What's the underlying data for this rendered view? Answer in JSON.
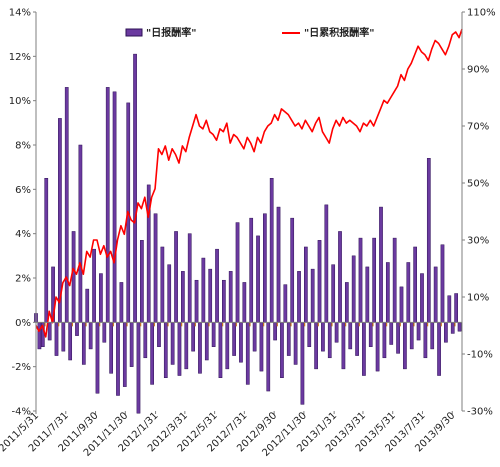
{
  "chart_data": {
    "type": "bar+line",
    "legend": {
      "placement": "top",
      "items": [
        "\"日报酬率\"",
        "\"日累积报酬率\""
      ]
    },
    "colors": {
      "bar_fill": "#6b3aa0",
      "bar_stroke": "#2e1155",
      "bar_highlight": "#c8731e",
      "line": "#ff0000",
      "axis": "#7f7f7f"
    },
    "grid": false,
    "left_axis": {
      "min": -0.04,
      "max": 0.14,
      "ticks": [
        -0.04,
        -0.02,
        0,
        0.02,
        0.04,
        0.06,
        0.08,
        0.1,
        0.12,
        0.14
      ],
      "tick_labels": [
        "-4%",
        "-2%",
        "0%",
        "2%",
        "4%",
        "6%",
        "8%",
        "10%",
        "12%",
        "14%"
      ]
    },
    "right_axis": {
      "min": -0.3,
      "max": 1.1,
      "ticks": [
        -0.3,
        -0.1,
        0.1,
        0.3,
        0.5,
        0.7,
        0.9,
        1.1
      ],
      "tick_labels": [
        "-30%",
        "-10%",
        "10%",
        "30%",
        "50%",
        "70%",
        "90%",
        "110%"
      ]
    },
    "x_axis": {
      "start": "2011-05-31",
      "end": "2013-10-20",
      "tick_dates": [
        "2011-05-31",
        "2011-07-31",
        "2011-09-30",
        "2011-11-30",
        "2012-01-31",
        "2012-03-31",
        "2012-05-31",
        "2012-07-31",
        "2012-09-30",
        "2012-11-30",
        "2013-01-31",
        "2013-03-31",
        "2013-05-31",
        "2013-07-31",
        "2013-09-30"
      ],
      "tick_labels": [
        "2011/5/31",
        "2011/7/31",
        "2011/9/30",
        "2011/11/30",
        "2012/1/31",
        "2012/3/31",
        "2012/5/31",
        "2012/7/31",
        "2012/9/30",
        "2012/11/30",
        "2013/1/31",
        "2013/3/31",
        "2013/5/31",
        "2013/7/31",
        "2013/9/30"
      ]
    },
    "series": [
      {
        "name": "\"日报酬率\"",
        "kind": "bar",
        "axis": "left",
        "x": [
          "2011-05-31",
          "2011-06-07",
          "2011-06-14",
          "2011-06-21",
          "2011-06-28",
          "2011-07-05",
          "2011-07-12",
          "2011-07-19",
          "2011-07-26",
          "2011-08-02",
          "2011-08-09",
          "2011-08-16",
          "2011-08-23",
          "2011-08-30",
          "2011-09-06",
          "2011-09-13",
          "2011-09-20",
          "2011-09-27",
          "2011-10-04",
          "2011-10-11",
          "2011-10-18",
          "2011-10-25",
          "2011-11-01",
          "2011-11-08",
          "2011-11-15",
          "2011-11-22",
          "2011-11-29",
          "2011-12-06",
          "2011-12-13",
          "2011-12-20",
          "2011-12-27",
          "2012-01-03",
          "2012-01-10",
          "2012-01-17",
          "2012-01-24",
          "2012-01-31",
          "2012-02-07",
          "2012-02-14",
          "2012-02-21",
          "2012-02-28",
          "2012-03-06",
          "2012-03-13",
          "2012-03-20",
          "2012-03-27",
          "2012-04-03",
          "2012-04-10",
          "2012-04-17",
          "2012-04-24",
          "2012-05-01",
          "2012-05-08",
          "2012-05-15",
          "2012-05-22",
          "2012-05-29",
          "2012-06-05",
          "2012-06-12",
          "2012-06-19",
          "2012-06-26",
          "2012-07-03",
          "2012-07-10",
          "2012-07-17",
          "2012-07-24",
          "2012-07-31",
          "2012-08-07",
          "2012-08-14",
          "2012-08-21",
          "2012-08-28",
          "2012-09-04",
          "2012-09-11",
          "2012-09-18",
          "2012-09-25",
          "2012-10-02",
          "2012-10-09",
          "2012-10-16",
          "2012-10-23",
          "2012-10-30",
          "2012-11-06",
          "2012-11-13",
          "2012-11-20",
          "2012-11-27",
          "2012-12-04",
          "2012-12-11",
          "2012-12-18",
          "2012-12-25",
          "2013-01-01",
          "2013-01-08",
          "2013-01-15",
          "2013-01-22",
          "2013-01-29",
          "2013-02-05",
          "2013-02-12",
          "2013-02-19",
          "2013-02-26",
          "2013-03-05",
          "2013-03-12",
          "2013-03-19",
          "2013-03-26",
          "2013-04-02",
          "2013-04-09",
          "2013-04-16",
          "2013-04-23",
          "2013-04-30",
          "2013-05-07",
          "2013-05-14",
          "2013-05-21",
          "2013-05-28",
          "2013-06-04",
          "2013-06-11",
          "2013-06-18",
          "2013-06-25",
          "2013-07-02",
          "2013-07-09",
          "2013-07-16",
          "2013-07-23",
          "2013-07-30",
          "2013-08-06",
          "2013-08-13",
          "2013-08-20",
          "2013-08-27",
          "2013-09-03",
          "2013-09-10",
          "2013-09-17",
          "2013-09-24",
          "2013-10-01",
          "2013-10-08",
          "2013-10-15"
        ],
        "values": [
          0.004,
          -0.012,
          -0.011,
          0.065,
          -0.008,
          0.025,
          -0.015,
          0.092,
          -0.013,
          0.106,
          -0.017,
          0.041,
          -0.006,
          0.08,
          -0.019,
          0.015,
          -0.012,
          0.033,
          -0.032,
          0.022,
          -0.009,
          0.106,
          -0.023,
          0.104,
          -0.033,
          0.018,
          -0.029,
          0.099,
          -0.02,
          0.121,
          -0.041,
          0.037,
          -0.016,
          0.062,
          -0.028,
          0.049,
          -0.011,
          0.034,
          -0.025,
          0.026,
          -0.019,
          0.041,
          -0.024,
          0.023,
          -0.021,
          0.04,
          -0.013,
          0.019,
          -0.023,
          0.029,
          -0.017,
          0.024,
          -0.011,
          0.033,
          -0.025,
          0.019,
          -0.021,
          0.023,
          -0.015,
          0.045,
          -0.018,
          0.018,
          -0.028,
          0.047,
          -0.013,
          0.039,
          -0.022,
          0.049,
          -0.031,
          0.065,
          -0.008,
          0.052,
          -0.025,
          0.017,
          -0.015,
          0.047,
          -0.019,
          0.023,
          -0.037,
          0.034,
          -0.011,
          0.024,
          -0.021,
          0.037,
          -0.013,
          0.053,
          -0.016,
          0.026,
          -0.009,
          0.041,
          -0.021,
          0.018,
          -0.012,
          0.03,
          -0.015,
          0.038,
          -0.024,
          0.025,
          -0.011,
          0.038,
          -0.022,
          0.052,
          -0.016,
          0.027,
          -0.01,
          0.038,
          -0.014,
          0.016,
          -0.021,
          0.027,
          -0.012,
          0.034,
          -0.008,
          0.022,
          -0.016,
          0.074,
          -0.012,
          0.025,
          -0.024,
          0.035,
          -0.009,
          0.012,
          -0.005,
          0.013,
          -0.004
        ]
      },
      {
        "name": "\"日累积报酬率\"",
        "kind": "line",
        "axis": "right",
        "x": [
          "2011-05-31",
          "2011-06-06",
          "2011-06-13",
          "2011-06-20",
          "2011-06-27",
          "2011-07-04",
          "2011-07-11",
          "2011-07-18",
          "2011-07-25",
          "2011-08-01",
          "2011-08-08",
          "2011-08-15",
          "2011-08-22",
          "2011-08-29",
          "2011-09-05",
          "2011-09-12",
          "2011-09-19",
          "2011-09-26",
          "2011-10-03",
          "2011-10-10",
          "2011-10-17",
          "2011-10-24",
          "2011-10-31",
          "2011-11-07",
          "2011-11-14",
          "2011-11-21",
          "2011-11-28",
          "2011-12-05",
          "2011-12-12",
          "2011-12-19",
          "2011-12-26",
          "2012-01-02",
          "2012-01-09",
          "2012-01-16",
          "2012-01-23",
          "2012-01-30",
          "2012-02-06",
          "2012-02-13",
          "2012-02-20",
          "2012-02-27",
          "2012-03-05",
          "2012-03-12",
          "2012-03-19",
          "2012-03-26",
          "2012-04-02",
          "2012-04-09",
          "2012-04-16",
          "2012-04-23",
          "2012-04-30",
          "2012-05-07",
          "2012-05-14",
          "2012-05-21",
          "2012-05-28",
          "2012-06-04",
          "2012-06-11",
          "2012-06-18",
          "2012-06-25",
          "2012-07-02",
          "2012-07-09",
          "2012-07-16",
          "2012-07-23",
          "2012-07-30",
          "2012-08-06",
          "2012-08-13",
          "2012-08-20",
          "2012-08-27",
          "2012-09-03",
          "2012-09-10",
          "2012-09-17",
          "2012-09-24",
          "2012-10-01",
          "2012-10-08",
          "2012-10-15",
          "2012-10-22",
          "2012-10-29",
          "2012-11-05",
          "2012-11-12",
          "2012-11-19",
          "2012-11-26",
          "2012-12-03",
          "2012-12-10",
          "2012-12-17",
          "2012-12-24",
          "2012-12-31",
          "2013-01-07",
          "2013-01-14",
          "2013-01-21",
          "2013-01-28",
          "2013-02-04",
          "2013-02-11",
          "2013-02-18",
          "2013-02-25",
          "2013-03-04",
          "2013-03-11",
          "2013-03-18",
          "2013-03-25",
          "2013-04-01",
          "2013-04-08",
          "2013-04-15",
          "2013-04-22",
          "2013-04-29",
          "2013-05-06",
          "2013-05-13",
          "2013-05-20",
          "2013-05-27",
          "2013-06-03",
          "2013-06-10",
          "2013-06-17",
          "2013-06-24",
          "2013-07-01",
          "2013-07-08",
          "2013-07-15",
          "2013-07-22",
          "2013-07-29",
          "2013-08-05",
          "2013-08-12",
          "2013-08-19",
          "2013-08-26",
          "2013-09-02",
          "2013-09-09",
          "2013-09-16",
          "2013-09-23",
          "2013-09-30",
          "2013-10-07",
          "2013-10-14",
          "2013-10-20"
        ],
        "values": [
          0.0,
          -0.02,
          0.0,
          -0.04,
          0.05,
          0.01,
          0.1,
          0.08,
          0.15,
          0.17,
          0.14,
          0.2,
          0.18,
          0.22,
          0.18,
          0.26,
          0.24,
          0.3,
          0.3,
          0.25,
          0.28,
          0.24,
          0.26,
          0.22,
          0.3,
          0.35,
          0.32,
          0.4,
          0.37,
          0.36,
          0.43,
          0.41,
          0.45,
          0.38,
          0.45,
          0.48,
          0.62,
          0.6,
          0.63,
          0.58,
          0.62,
          0.6,
          0.57,
          0.63,
          0.61,
          0.66,
          0.7,
          0.74,
          0.7,
          0.69,
          0.72,
          0.68,
          0.67,
          0.65,
          0.69,
          0.68,
          0.71,
          0.64,
          0.67,
          0.66,
          0.64,
          0.62,
          0.66,
          0.64,
          0.61,
          0.66,
          0.64,
          0.68,
          0.7,
          0.71,
          0.74,
          0.72,
          0.76,
          0.75,
          0.74,
          0.72,
          0.7,
          0.71,
          0.69,
          0.72,
          0.7,
          0.68,
          0.71,
          0.73,
          0.68,
          0.66,
          0.64,
          0.69,
          0.72,
          0.7,
          0.73,
          0.71,
          0.72,
          0.71,
          0.7,
          0.68,
          0.71,
          0.7,
          0.72,
          0.7,
          0.73,
          0.76,
          0.79,
          0.78,
          0.8,
          0.82,
          0.84,
          0.88,
          0.86,
          0.9,
          0.92,
          0.95,
          0.98,
          0.96,
          0.95,
          0.93,
          0.97,
          1.0,
          0.99,
          0.97,
          0.95,
          0.98,
          1.02,
          1.03,
          1.01,
          1.04
        ]
      }
    ]
  }
}
